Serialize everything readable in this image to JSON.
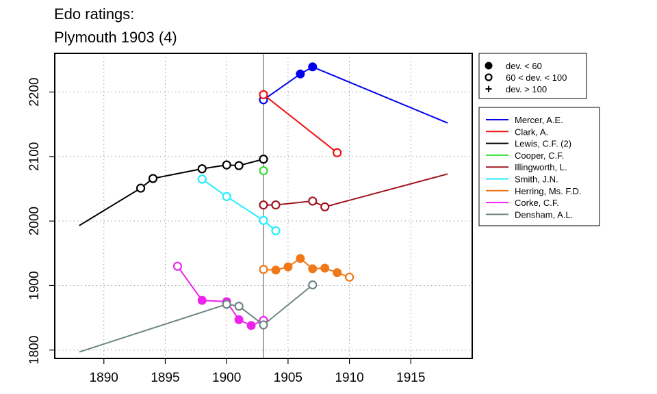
{
  "chart_data": {
    "type": "line",
    "title": [
      "Edo ratings:",
      "Plymouth 1903 (4)"
    ],
    "xlabel": "",
    "ylabel": "",
    "xlim": [
      1886,
      1920
    ],
    "ylim": [
      1787,
      2260
    ],
    "xticks": [
      1890,
      1895,
      1900,
      1905,
      1910,
      1915
    ],
    "yticks": [
      1800,
      1900,
      2000,
      2100,
      2200
    ],
    "grid": "dotted",
    "vline": 1903,
    "marker_legend": [
      {
        "label": "dev. < 60",
        "marker": "filled"
      },
      {
        "label": "60 < dev. < 100",
        "marker": "open"
      },
      {
        "label": "dev. > 100",
        "marker": "plus"
      }
    ],
    "series": [
      {
        "name": "Mercer, A.E.",
        "color": "#0000ee",
        "x": [
          1903,
          1906,
          1907,
          1918
        ],
        "y": [
          2188,
          2228,
          2239,
          2152
        ],
        "markers": [
          "open",
          "filled",
          "filled",
          "none"
        ]
      },
      {
        "name": "Clark, A.",
        "color": "#ee1111",
        "x": [
          1903,
          1909
        ],
        "y": [
          2196,
          2106
        ],
        "markers": [
          "open",
          "open"
        ]
      },
      {
        "name": "Lewis, C.F. (2)",
        "color": "#000000",
        "x": [
          1888,
          1893,
          1894,
          1898,
          1900,
          1901,
          1903
        ],
        "y": [
          1993,
          2051,
          2066,
          2081,
          2087,
          2086,
          2096
        ],
        "markers": [
          "none",
          "open",
          "open",
          "open",
          "open",
          "open",
          "open"
        ]
      },
      {
        "name": "Cooper, C.F.",
        "color": "#33dd33",
        "x": [
          1903
        ],
        "y": [
          2078
        ],
        "markers": [
          "open"
        ]
      },
      {
        "name": "Illingworth, L.",
        "color": "#a0151e",
        "x": [
          1903,
          1904,
          1907,
          1908,
          1918
        ],
        "y": [
          2025,
          2025,
          2031,
          2022,
          2073
        ],
        "markers": [
          "open",
          "open",
          "open",
          "open",
          "none"
        ]
      },
      {
        "name": "Smith, J.N.",
        "color": "#22eeff",
        "x": [
          1898,
          1900,
          1903,
          1904
        ],
        "y": [
          2065,
          2038,
          2001,
          1985
        ],
        "markers": [
          "open",
          "open",
          "open",
          "open"
        ]
      },
      {
        "name": "Herring, Ms. F.D.",
        "color": "#f07818",
        "x": [
          1903,
          1904,
          1905,
          1906,
          1907,
          1908,
          1909,
          1910
        ],
        "y": [
          1925,
          1924,
          1929,
          1942,
          1926,
          1927,
          1920,
          1913
        ],
        "markers": [
          "open",
          "filled",
          "filled",
          "filled",
          "filled",
          "filled",
          "filled",
          "open"
        ]
      },
      {
        "name": "Corke, C.F.",
        "color": "#ee22ee",
        "x": [
          1896,
          1898,
          1900,
          1901,
          1902,
          1903
        ],
        "y": [
          1930,
          1877,
          1875,
          1847,
          1838,
          1846
        ],
        "markers": [
          "open",
          "filled",
          "filled",
          "filled",
          "filled",
          "open"
        ]
      },
      {
        "name": "Densham, A.L.",
        "color": "#6f8585",
        "x": [
          1888,
          1900,
          1901,
          1903,
          1907
        ],
        "y": [
          1797,
          1871,
          1868,
          1839,
          1901
        ],
        "markers": [
          "none",
          "open",
          "open",
          "open",
          "open"
        ]
      }
    ]
  }
}
